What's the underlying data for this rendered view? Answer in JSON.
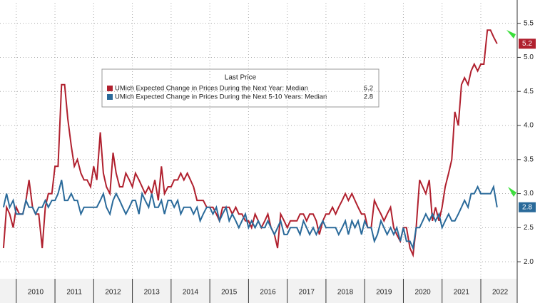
{
  "chart_data": {
    "type": "line",
    "legend_title": "Last Price",
    "grid": true,
    "xlim": [
      2009.58,
      2022.94
    ],
    "years": [
      2010,
      2011,
      2012,
      2013,
      2014,
      2015,
      2016,
      2017,
      2018,
      2019,
      2020,
      2021,
      2022
    ],
    "ylim": [
      1.75,
      5.8
    ],
    "yticks": [
      {
        "value": 2,
        "label": "2.0"
      },
      2.5,
      {
        "value": 3,
        "label": "3.0"
      },
      3.5,
      {
        "value": 4,
        "label": "4.0"
      },
      4.5,
      {
        "value": 5,
        "label": "5.0"
      },
      5.5
    ],
    "x": [
      2009.67,
      2009.75,
      2009.83,
      2009.92,
      2010,
      2010.08,
      2010.17,
      2010.25,
      2010.33,
      2010.42,
      2010.5,
      2010.58,
      2010.67,
      2010.75,
      2010.83,
      2010.92,
      2011,
      2011.08,
      2011.17,
      2011.25,
      2011.33,
      2011.42,
      2011.5,
      2011.58,
      2011.67,
      2011.75,
      2011.83,
      2011.92,
      2012,
      2012.08,
      2012.17,
      2012.25,
      2012.33,
      2012.42,
      2012.5,
      2012.58,
      2012.67,
      2012.75,
      2012.83,
      2012.92,
      2013,
      2013.08,
      2013.17,
      2013.25,
      2013.33,
      2013.42,
      2013.5,
      2013.58,
      2013.67,
      2013.75,
      2013.83,
      2013.92,
      2014,
      2014.08,
      2014.17,
      2014.25,
      2014.33,
      2014.42,
      2014.5,
      2014.58,
      2014.67,
      2014.75,
      2014.83,
      2014.92,
      2015,
      2015.08,
      2015.17,
      2015.25,
      2015.33,
      2015.42,
      2015.5,
      2015.58,
      2015.67,
      2015.75,
      2015.83,
      2015.92,
      2016,
      2016.08,
      2016.17,
      2016.25,
      2016.33,
      2016.42,
      2016.5,
      2016.58,
      2016.67,
      2016.75,
      2016.83,
      2016.92,
      2017,
      2017.08,
      2017.17,
      2017.25,
      2017.33,
      2017.42,
      2017.5,
      2017.58,
      2017.67,
      2017.75,
      2017.83,
      2017.92,
      2018,
      2018.08,
      2018.17,
      2018.25,
      2018.33,
      2018.42,
      2018.5,
      2018.58,
      2018.67,
      2018.75,
      2018.83,
      2018.92,
      2019,
      2019.08,
      2019.17,
      2019.25,
      2019.33,
      2019.42,
      2019.5,
      2019.58,
      2019.67,
      2019.75,
      2019.83,
      2019.92,
      2020,
      2020.08,
      2020.17,
      2020.25,
      2020.33,
      2020.42,
      2020.5,
      2020.58,
      2020.67,
      2020.75,
      2020.83,
      2020.92,
      2021,
      2021.08,
      2021.17,
      2021.25,
      2021.33,
      2021.42,
      2021.5,
      2021.58,
      2021.67,
      2021.75,
      2021.83,
      2021.92,
      2022,
      2022.08,
      2022.17,
      2022.25,
      2022.33,
      2022.42
    ],
    "series": [
      {
        "name": "UMich Expected Change in Prices During the Next Year: Median",
        "color": "#b0202e",
        "values": [
          2.2,
          2.8,
          2.7,
          2.5,
          2.8,
          2.7,
          2.7,
          2.9,
          3.2,
          2.8,
          2.7,
          2.7,
          2.2,
          2.8,
          3.0,
          3.0,
          3.4,
          3.4,
          4.6,
          4.6,
          4.1,
          3.7,
          3.4,
          3.5,
          3.3,
          3.2,
          3.2,
          3.1,
          3.4,
          3.2,
          3.9,
          3.3,
          3.1,
          3.0,
          3.6,
          3.3,
          3.1,
          3.1,
          3.3,
          3.2,
          3.1,
          3.3,
          3.2,
          3.1,
          3.0,
          3.1,
          3.0,
          3.2,
          2.9,
          3.4,
          3.0,
          3.1,
          3.1,
          3.2,
          3.2,
          3.3,
          3.2,
          3.3,
          3.2,
          3.1,
          2.9,
          2.9,
          2.9,
          2.8,
          2.8,
          2.8,
          2.7,
          2.6,
          2.8,
          2.8,
          2.8,
          2.7,
          2.8,
          2.7,
          2.7,
          2.6,
          2.6,
          2.5,
          2.7,
          2.6,
          2.5,
          2.6,
          2.7,
          2.5,
          2.4,
          2.2,
          2.7,
          2.6,
          2.5,
          2.6,
          2.6,
          2.6,
          2.7,
          2.7,
          2.6,
          2.7,
          2.7,
          2.6,
          2.4,
          2.6,
          2.7,
          2.7,
          2.8,
          2.7,
          2.8,
          2.9,
          3.0,
          2.9,
          3.0,
          2.9,
          2.8,
          2.7,
          2.7,
          2.5,
          2.5,
          2.9,
          2.8,
          2.7,
          2.6,
          2.7,
          2.8,
          2.5,
          2.4,
          2.3,
          2.5,
          2.5,
          2.2,
          2.1,
          2.5,
          3.2,
          3.1,
          3.0,
          3.2,
          2.6,
          2.8,
          2.6,
          2.8,
          3.1,
          3.3,
          3.5,
          4.2,
          4.0,
          4.6,
          4.7,
          4.6,
          4.8,
          4.9,
          4.8,
          4.9,
          4.9,
          5.4,
          5.4,
          5.3,
          5.2
        ]
      },
      {
        "name": "UMich Expected Change in Prices During the Next 5-10 Years: Median",
        "color": "#2a6a9a",
        "values": [
          2.8,
          3.0,
          2.8,
          2.9,
          2.7,
          2.7,
          2.7,
          2.9,
          2.8,
          2.8,
          2.7,
          2.8,
          2.8,
          2.9,
          2.8,
          2.9,
          2.9,
          3.0,
          3.2,
          2.9,
          2.9,
          3.0,
          2.9,
          2.9,
          2.7,
          2.8,
          2.8,
          2.8,
          2.8,
          2.8,
          2.9,
          3.0,
          2.8,
          2.7,
          2.9,
          3.0,
          2.9,
          2.8,
          2.7,
          2.8,
          2.9,
          2.9,
          2.7,
          3.0,
          2.9,
          2.8,
          3.0,
          2.8,
          2.8,
          2.9,
          2.7,
          2.9,
          2.9,
          2.8,
          2.9,
          2.7,
          2.8,
          2.8,
          2.8,
          2.7,
          2.8,
          2.6,
          2.7,
          2.8,
          2.8,
          2.7,
          2.8,
          2.6,
          2.7,
          2.8,
          2.6,
          2.7,
          2.6,
          2.5,
          2.6,
          2.7,
          2.5,
          2.6,
          2.5,
          2.6,
          2.5,
          2.5,
          2.6,
          2.5,
          2.4,
          2.5,
          2.6,
          2.4,
          2.4,
          2.5,
          2.5,
          2.5,
          2.4,
          2.6,
          2.5,
          2.4,
          2.5,
          2.4,
          2.5,
          2.6,
          2.5,
          2.5,
          2.5,
          2.5,
          2.4,
          2.5,
          2.6,
          2.4,
          2.6,
          2.5,
          2.6,
          2.4,
          2.6,
          2.5,
          2.5,
          2.3,
          2.4,
          2.6,
          2.5,
          2.4,
          2.5,
          2.4,
          2.5,
          2.3,
          2.5,
          2.3,
          2.3,
          2.2,
          2.5,
          2.5,
          2.6,
          2.7,
          2.6,
          2.7,
          2.6,
          2.7,
          2.5,
          2.6,
          2.7,
          2.6,
          2.6,
          2.7,
          2.8,
          2.9,
          2.8,
          3.0,
          3.0,
          3.1,
          3.0,
          3.0,
          3.0,
          3.0,
          3.1,
          2.8
        ]
      }
    ]
  }
}
